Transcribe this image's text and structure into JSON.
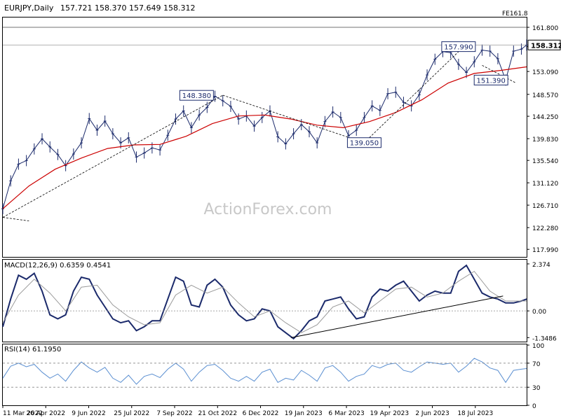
{
  "header": {
    "symbol": "EURJPY,Daily",
    "ohlc": "157.721 158.370 157.649 158.312",
    "fe_label": "FE161.8",
    "watermark": "ActionForex.com"
  },
  "chart_data": [
    {
      "type": "line",
      "panel": "price",
      "ylim": [
        116.5,
        163.6
      ],
      "yticks": [
        "161.800",
        "157.990",
        "153.090",
        "148.570",
        "144.250",
        "139.830",
        "135.540",
        "131.120",
        "126.710",
        "122.280",
        "117.990"
      ],
      "last_price_label": "158.312",
      "x_range": [
        0,
        100
      ],
      "x_tick_positions": [
        0,
        8.2,
        16.4,
        24.6,
        32.8,
        41.0,
        49.2,
        57.4,
        65.6,
        73.8,
        82.0,
        90.2
      ],
      "xtick_labels": [
        "11 Mar 2022",
        "26 Apr 2022",
        "9 Jun 2022",
        "25 Jul 2022",
        "7 Sep 2022",
        "21 Oct 2022",
        "6 Dec 2022",
        "19 Jan 2023",
        "6 Mar 2023",
        "19 Apr 2023",
        "2 Jun 2023",
        "18 Jul 2023"
      ],
      "series": [
        {
          "role": "close",
          "color": "#1b2a6b",
          "x": [
            0,
            1.5,
            3,
            4.5,
            6,
            7.5,
            9,
            10.5,
            12,
            13.5,
            15,
            16.5,
            18,
            19.5,
            21,
            22.5,
            24,
            25.5,
            27,
            28.5,
            30,
            31.5,
            33,
            34.5,
            36,
            37.5,
            39,
            40.5,
            42,
            43.5,
            45,
            46.5,
            48,
            49.5,
            51,
            52.5,
            54,
            55.5,
            57,
            58.5,
            60,
            61.5,
            63,
            64.5,
            66,
            67.5,
            69,
            70.5,
            72,
            73.5,
            75,
            76.5,
            78,
            79.5,
            81,
            82.5,
            84,
            85.5,
            87,
            88.5,
            90,
            91.5,
            93,
            94.5,
            96,
            97.5,
            99,
            100
          ],
          "values": [
            126.0,
            131.5,
            134.8,
            135.5,
            137.8,
            139.8,
            138.2,
            136.7,
            134.5,
            136.8,
            139.0,
            143.8,
            141.5,
            143.3,
            140.8,
            139.0,
            140.0,
            136.2,
            137.0,
            138.0,
            137.6,
            140.5,
            143.7,
            145.3,
            142.0,
            144.5,
            146.0,
            148.2,
            147.3,
            146.2,
            143.7,
            144.3,
            142.3,
            144.0,
            145.3,
            140.2,
            138.8,
            140.8,
            142.6,
            141.2,
            139.0,
            143.2,
            145.1,
            144.0,
            140.4,
            141.5,
            144.0,
            146.3,
            145.4,
            148.7,
            149.0,
            147.0,
            146.3,
            148.5,
            152.4,
            155.5,
            157.0,
            156.8,
            154.5,
            152.9,
            155.0,
            157.3,
            157.1,
            155.6,
            151.4,
            157.1,
            157.5,
            158.3
          ]
        },
        {
          "name": "",
          "role": "moving-average",
          "color": "#cc0000",
          "x": [
            0,
            5,
            10,
            15,
            20,
            25,
            30,
            35,
            40,
            45,
            50,
            55,
            60,
            65,
            70,
            75,
            80,
            85,
            90,
            95,
            100
          ],
          "values": [
            126.0,
            130.5,
            133.8,
            136.0,
            137.9,
            138.6,
            138.7,
            140.3,
            142.8,
            144.3,
            144.5,
            143.7,
            142.5,
            142.0,
            143.2,
            145.0,
            147.5,
            150.8,
            152.7,
            153.3,
            154.0
          ]
        }
      ],
      "levels": [
        {
          "label": "157.990",
          "value": 157.99,
          "x": 87.0
        },
        {
          "label": "148.380",
          "value": 148.38,
          "x": 37.0
        },
        {
          "label": "151.390",
          "value": 151.39,
          "x": 93.2
        },
        {
          "label": "139.050",
          "value": 139.05,
          "x": 69.0
        }
      ],
      "trendlines": [
        {
          "x1": 0,
          "y1": 124.3,
          "x2": 42,
          "y2": 148.4
        },
        {
          "x1": 42,
          "y1": 148.4,
          "x2": 69,
          "y2": 139.05
        },
        {
          "x1": 69,
          "y1": 139.05,
          "x2": 88,
          "y2": 157.99
        },
        {
          "x1": 91.5,
          "y1": 154.3,
          "x2": 98,
          "y2": 150.8
        },
        {
          "x1": 0,
          "y1": 124.3,
          "x2": 5,
          "y2": 123.6
        }
      ],
      "hlines": [
        158.312,
        161.8
      ]
    },
    {
      "type": "line",
      "panel": "macd",
      "title": "MACD(12,26,9) 0.6359 0.4541",
      "ylim": [
        -1.55,
        2.55
      ],
      "yticks": [
        "2.374",
        "0.00",
        "-1.3486"
      ],
      "series": [
        {
          "role": "macd",
          "color": "#1b2a6b",
          "x": [
            0,
            1.5,
            3,
            4.5,
            6,
            7.5,
            9,
            10.5,
            12,
            13.5,
            15,
            16.5,
            18,
            19.5,
            21,
            22.5,
            24,
            25.5,
            27,
            28.5,
            30,
            31.5,
            33,
            34.5,
            36,
            37.5,
            39,
            40.5,
            42,
            43.5,
            45,
            46.5,
            48,
            49.5,
            51,
            52.5,
            54,
            55.5,
            57,
            58.5,
            60,
            61.5,
            63,
            64.5,
            66,
            67.5,
            69,
            70.5,
            72,
            73.5,
            75,
            76.5,
            78,
            79.5,
            81,
            82.5,
            84,
            85.5,
            87,
            88.5,
            90,
            91.5,
            93,
            94.5,
            96,
            97.5,
            99,
            100
          ],
          "values": [
            -0.8,
            0.6,
            1.8,
            1.6,
            1.9,
            1.0,
            -0.2,
            -0.4,
            -0.2,
            1.0,
            1.7,
            1.6,
            0.8,
            0.2,
            -0.4,
            -0.6,
            -0.5,
            -1.0,
            -0.8,
            -0.5,
            -0.5,
            0.6,
            1.7,
            1.5,
            0.3,
            0.2,
            1.3,
            1.6,
            1.2,
            0.3,
            -0.2,
            -0.5,
            -0.4,
            0.1,
            0.0,
            -0.8,
            -1.1,
            -1.4,
            -1.0,
            -0.5,
            -0.3,
            0.5,
            0.6,
            0.7,
            0.1,
            -0.4,
            -0.3,
            0.7,
            1.1,
            1.0,
            1.3,
            1.5,
            1.0,
            0.5,
            0.8,
            1.0,
            0.9,
            0.9,
            2.0,
            2.3,
            1.6,
            0.9,
            0.7,
            0.6,
            0.4,
            0.4,
            0.5,
            0.6
          ]
        },
        {
          "role": "signal",
          "color": "#9a9a9a",
          "x": [
            0,
            3,
            6,
            9,
            12,
            15,
            18,
            21,
            24,
            27,
            30,
            33,
            36,
            39,
            42,
            45,
            48,
            51,
            54,
            57,
            60,
            63,
            66,
            69,
            72,
            75,
            78,
            81,
            84,
            87,
            90,
            93,
            96,
            100
          ],
          "values": [
            -0.6,
            0.8,
            1.6,
            0.9,
            0.0,
            1.2,
            1.3,
            0.3,
            -0.3,
            -0.7,
            -0.6,
            0.8,
            1.3,
            0.9,
            1.2,
            0.4,
            -0.3,
            0.0,
            -0.6,
            -1.1,
            -0.7,
            0.2,
            0.5,
            -0.1,
            0.5,
            1.1,
            1.2,
            0.7,
            0.9,
            1.5,
            2.0,
            1.0,
            0.5,
            0.5
          ]
        }
      ],
      "trendlines": [
        {
          "x1": 55,
          "y1": -1.35,
          "x2": 95.5,
          "y2": 0.75
        }
      ]
    },
    {
      "type": "line",
      "panel": "rsi",
      "title": "RSI(14) 61.1950",
      "ylim": [
        0,
        100
      ],
      "yticks": [
        "100",
        "70",
        "30",
        "0"
      ],
      "levels": [
        70,
        30
      ],
      "series": [
        {
          "role": "rsi",
          "color": "#5b8fd1",
          "x": [
            0,
            1.5,
            3,
            4.5,
            6,
            7.5,
            9,
            10.5,
            12,
            13.5,
            15,
            16.5,
            18,
            19.5,
            21,
            22.5,
            24,
            25.5,
            27,
            28.5,
            30,
            31.5,
            33,
            34.5,
            36,
            37.5,
            39,
            40.5,
            42,
            43.5,
            45,
            46.5,
            48,
            49.5,
            51,
            52.5,
            54,
            55.5,
            57,
            58.5,
            60,
            61.5,
            63,
            64.5,
            66,
            67.5,
            69,
            70.5,
            72,
            73.5,
            75,
            76.5,
            78,
            79.5,
            81,
            82.5,
            84,
            85.5,
            87,
            88.5,
            90,
            91.5,
            93,
            94.5,
            96,
            97.5,
            99,
            100
          ],
          "values": [
            45,
            65,
            70,
            64,
            68,
            55,
            45,
            52,
            40,
            58,
            72,
            62,
            55,
            63,
            45,
            38,
            50,
            35,
            48,
            52,
            46,
            60,
            70,
            60,
            40,
            55,
            66,
            68,
            58,
            45,
            40,
            48,
            40,
            55,
            60,
            38,
            45,
            42,
            58,
            50,
            40,
            62,
            66,
            55,
            40,
            48,
            52,
            66,
            62,
            68,
            70,
            58,
            55,
            64,
            72,
            70,
            68,
            70,
            55,
            65,
            78,
            72,
            62,
            58,
            38,
            58,
            60,
            61
          ]
        }
      ]
    }
  ]
}
